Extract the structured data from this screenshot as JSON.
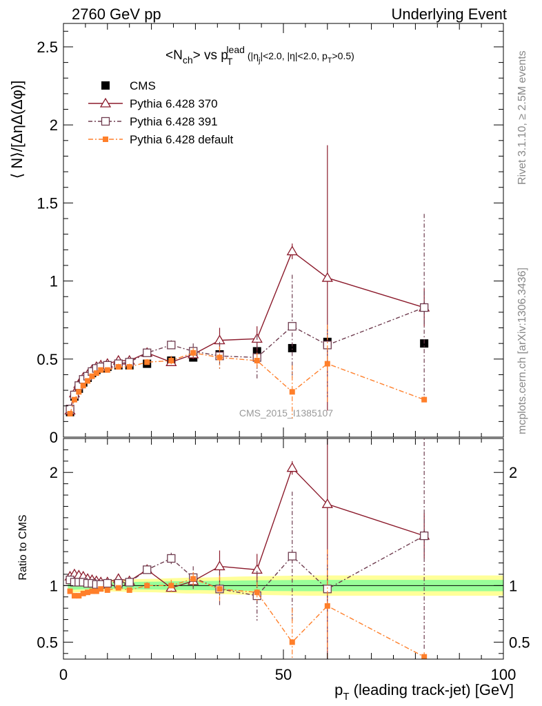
{
  "header": {
    "left": "2760 GeV pp",
    "right": "Underlying Event"
  },
  "side_labels": {
    "rivet": "Rivet 3.1.10, ≥ 2.5M events",
    "mcplots": "mcplots.cern.ch [arXiv:1306.3436]"
  },
  "watermark": "CMS_2015_I1385107",
  "title": {
    "main_a": "<N",
    "main_a_sub": "ch",
    "main_b": "> vs p",
    "main_b_sub": "T",
    "main_b_sup": "lead",
    "cond_a": "(|η",
    "cond_a_sub": "j",
    "cond_b": "|<2.0, |η|<2.0, p",
    "cond_b_sub": "T",
    "cond_c": ">0.5)"
  },
  "ylabel_main": "⟨ N⟩/[ΔηΔ(Δφ)]",
  "ylabel_ratio": "Ratio to CMS",
  "xlabel": {
    "p": "p",
    "sub": "T",
    "rest": " (leading track-jet) [GeV]"
  },
  "colors": {
    "cms": "#000000",
    "p370": "#8b1a2b",
    "p391": "#6e3b4e",
    "pdef": "#ff7f2a",
    "band_outer": "#ffff99",
    "band_inner": "#99ff99"
  },
  "chart_data": [
    {
      "type": "scatter",
      "panel": "main",
      "xlim": [
        0,
        100
      ],
      "ylim": [
        0,
        2.65
      ],
      "xticks": [
        0,
        50,
        100
      ],
      "yticks": [
        0,
        0.5,
        1,
        1.5,
        2,
        2.5
      ],
      "ytick_labels": [
        "0",
        "0.5",
        "1",
        "1.5",
        "2",
        "2.5"
      ],
      "legend": "top-left",
      "series": [
        {
          "name": "CMS",
          "style": "cms",
          "x": [
            1.5,
            2.5,
            3.5,
            4.5,
            5.5,
            6.5,
            7.5,
            8.5,
            10,
            12.5,
            15,
            19,
            24.5,
            29.5,
            35.5,
            44,
            52,
            60,
            82
          ],
          "y": [
            0.16,
            0.26,
            0.31,
            0.35,
            0.38,
            0.41,
            0.43,
            0.44,
            0.45,
            0.46,
            0.46,
            0.47,
            0.49,
            0.51,
            0.53,
            0.55,
            0.57,
            0.61,
            0.6
          ],
          "err": [
            0.01,
            0.01,
            0.01,
            0.01,
            0.01,
            0.01,
            0.01,
            0.01,
            0.01,
            0.01,
            0.01,
            0.01,
            0.01,
            0.01,
            0.02,
            0.02,
            0.02,
            0.02,
            0.02
          ]
        },
        {
          "name": "Pythia 6.428 370",
          "style": "p370",
          "x": [
            1.5,
            2.5,
            3.5,
            4.5,
            5.5,
            6.5,
            7.5,
            8.5,
            10,
            12.5,
            15,
            19,
            24.5,
            29.5,
            35.5,
            44,
            52,
            60,
            82
          ],
          "y": [
            0.17,
            0.28,
            0.34,
            0.38,
            0.4,
            0.43,
            0.45,
            0.46,
            0.47,
            0.49,
            0.49,
            0.54,
            0.48,
            0.53,
            0.62,
            0.63,
            1.19,
            1.02,
            0.83
          ],
          "err": [
            0.01,
            0.01,
            0.01,
            0.01,
            0.01,
            0.01,
            0.01,
            0.01,
            0.01,
            0.02,
            0.02,
            0.02,
            0.02,
            0.03,
            0.08,
            0.08,
            0.05,
            0.85,
            0.12
          ]
        },
        {
          "name": "Pythia 6.428 391",
          "style": "p391",
          "x": [
            1.5,
            2.5,
            3.5,
            4.5,
            5.5,
            6.5,
            7.5,
            8.5,
            10,
            12.5,
            15,
            19,
            24.5,
            29.5,
            35.5,
            44,
            52,
            60,
            82
          ],
          "y": [
            0.18,
            0.27,
            0.33,
            0.37,
            0.39,
            0.42,
            0.44,
            0.45,
            0.46,
            0.47,
            0.48,
            0.54,
            0.59,
            0.55,
            0.52,
            0.51,
            0.71,
            0.59,
            0.83
          ],
          "err": [
            0.01,
            0.01,
            0.01,
            0.01,
            0.01,
            0.01,
            0.01,
            0.01,
            0.01,
            0.02,
            0.02,
            0.02,
            0.03,
            0.05,
            0.09,
            0.14,
            0.33,
            0.12,
            0.6
          ]
        },
        {
          "name": "Pythia 6.428 default",
          "style": "pdef",
          "x": [
            1.5,
            2.5,
            3.5,
            4.5,
            5.5,
            6.5,
            7.5,
            8.5,
            10,
            12.5,
            15,
            19,
            24.5,
            29.5,
            35.5,
            44,
            52,
            60,
            82
          ],
          "y": [
            0.15,
            0.24,
            0.29,
            0.33,
            0.36,
            0.39,
            0.41,
            0.43,
            0.43,
            0.45,
            0.45,
            0.48,
            0.49,
            0.54,
            0.51,
            0.49,
            0.29,
            0.47,
            0.24
          ],
          "err": [
            0.01,
            0.01,
            0.01,
            0.01,
            0.01,
            0.01,
            0.01,
            0.01,
            0.01,
            0.02,
            0.02,
            0.02,
            0.03,
            0.03,
            0.07,
            0.05,
            0.17,
            0.25,
            0.02
          ]
        }
      ]
    },
    {
      "type": "scatter",
      "panel": "ratio",
      "xlim": [
        0,
        100
      ],
      "ylim": [
        0.35,
        2.3
      ],
      "xticks": [
        0,
        50,
        100
      ],
      "xtick_labels": [
        "0",
        "50",
        "100"
      ],
      "yticks": [
        0.5,
        1,
        2
      ],
      "ytick_labels": [
        "0.5",
        "1",
        "2"
      ],
      "band": {
        "x": [
          1,
          2,
          3,
          4,
          5,
          6,
          7,
          8,
          9,
          11,
          14,
          17,
          21,
          28,
          31,
          40,
          48,
          56,
          64,
          100
        ],
        "outer": [
          0.07,
          0.065,
          0.06,
          0.06,
          0.058,
          0.056,
          0.054,
          0.052,
          0.05,
          0.052,
          0.055,
          0.058,
          0.06,
          0.07,
          0.07,
          0.08,
          0.085,
          0.09,
          0.09,
          0.09
        ],
        "inner": [
          0.04,
          0.037,
          0.035,
          0.034,
          0.032,
          0.031,
          0.03,
          0.03,
          0.029,
          0.03,
          0.032,
          0.033,
          0.035,
          0.04,
          0.04,
          0.045,
          0.048,
          0.05,
          0.05,
          0.05
        ]
      },
      "series": [
        {
          "name": "Pythia 6.428 370",
          "style": "p370",
          "x": [
            1.5,
            2.5,
            3.5,
            4.5,
            5.5,
            6.5,
            7.5,
            8.5,
            10,
            12.5,
            15,
            19,
            24.5,
            29.5,
            35.5,
            44,
            52,
            60,
            82
          ],
          "y": [
            1.08,
            1.1,
            1.09,
            1.08,
            1.06,
            1.05,
            1.04,
            1.03,
            1.03,
            1.06,
            1.04,
            1.14,
            0.98,
            1.04,
            1.17,
            1.14,
            2.04,
            1.72,
            1.44
          ],
          "err": [
            0.01,
            0.01,
            0.01,
            0.01,
            0.01,
            0.01,
            0.01,
            0.01,
            0.01,
            0.02,
            0.02,
            0.03,
            0.03,
            0.05,
            0.14,
            0.14,
            0.06,
            1.4,
            0.2
          ]
        },
        {
          "name": "Pythia 6.428 391",
          "style": "p391",
          "x": [
            1.5,
            2.5,
            3.5,
            4.5,
            5.5,
            6.5,
            7.5,
            8.5,
            10,
            12.5,
            15,
            19,
            24.5,
            29.5,
            35.5,
            44,
            52,
            60,
            82
          ],
          "y": [
            1.05,
            1.03,
            1.03,
            1.03,
            1.02,
            1.02,
            1.01,
            1.01,
            1.02,
            1.02,
            1.03,
            1.14,
            1.24,
            1.07,
            0.97,
            0.91,
            1.26,
            0.97,
            1.44
          ],
          "err": [
            0.01,
            0.01,
            0.01,
            0.01,
            0.01,
            0.01,
            0.01,
            0.01,
            0.01,
            0.02,
            0.02,
            0.03,
            0.05,
            0.1,
            0.15,
            0.22,
            0.57,
            0.2,
            1.0
          ]
        },
        {
          "name": "Pythia 6.428 default",
          "style": "pdef",
          "x": [
            1.5,
            2.5,
            3.5,
            4.5,
            5.5,
            6.5,
            7.5,
            8.5,
            10,
            12.5,
            15,
            19,
            24.5,
            29.5,
            35.5,
            44,
            52,
            60,
            82
          ],
          "y": [
            0.95,
            0.91,
            0.91,
            0.93,
            0.94,
            0.95,
            0.95,
            0.97,
            0.96,
            0.98,
            0.96,
            1.0,
            1.0,
            1.06,
            0.97,
            0.94,
            0.5,
            0.82,
            0.37
          ],
          "err": [
            0.01,
            0.01,
            0.01,
            0.01,
            0.01,
            0.01,
            0.01,
            0.01,
            0.01,
            0.02,
            0.02,
            0.03,
            0.05,
            0.06,
            0.12,
            0.09,
            0.3,
            0.5,
            0.04
          ]
        }
      ]
    }
  ]
}
